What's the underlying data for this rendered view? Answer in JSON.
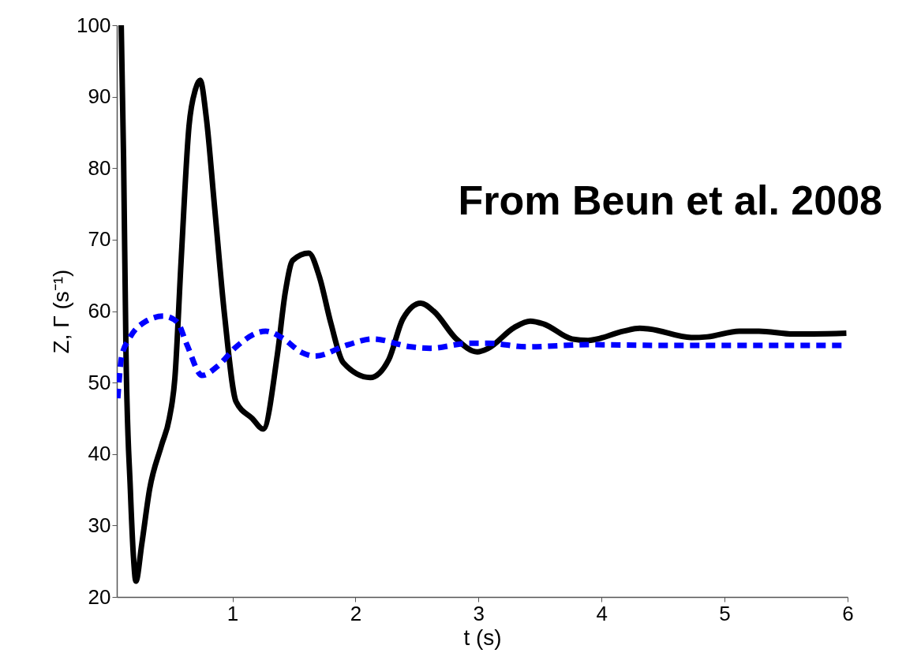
{
  "chart_data": {
    "type": "line",
    "xlabel": "t (s)",
    "ylabel": "Z, Γ (s⁻¹)",
    "xlim": [
      0.06,
      6
    ],
    "ylim": [
      20,
      100
    ],
    "xticks": [
      1,
      2,
      3,
      4,
      5,
      6
    ],
    "yticks": [
      20,
      30,
      40,
      50,
      60,
      70,
      80,
      90,
      100
    ],
    "grid": false,
    "marker": "none",
    "annotations": [
      "From Beun et al. 2008"
    ],
    "series": [
      {
        "color": "#000000",
        "line_style": "solid",
        "x": [
          0.096,
          0.115,
          0.135,
          0.17,
          0.195,
          0.215,
          0.263,
          0.327,
          0.423,
          0.487,
          0.532,
          0.583,
          0.647,
          0.699,
          0.737,
          0.788,
          0.853,
          0.936,
          1.03,
          1.16,
          1.25,
          1.365,
          1.43,
          1.49,
          1.62,
          1.705,
          1.8,
          1.9,
          2.12,
          2.27,
          2.385,
          2.53,
          2.635,
          2.82,
          2.99,
          3.08,
          3.29,
          3.42,
          3.53,
          3.76,
          3.89,
          4.18,
          4.31,
          4.39,
          4.73,
          4.86,
          5.12,
          5.28,
          5.56,
          5.72,
          5.99
        ],
        "values": [
          100,
          81.5,
          53.9,
          35.1,
          25.7,
          22.2,
          27.4,
          35.1,
          41.2,
          45,
          50.6,
          67.1,
          85.9,
          91,
          92.3,
          87,
          74.9,
          59.4,
          47.3,
          45,
          43.5,
          53.9,
          62.7,
          67.1,
          68.1,
          64.9,
          58.3,
          52.8,
          50.7,
          53.2,
          58.9,
          61.1,
          60,
          56.1,
          54.3,
          54.8,
          57.7,
          58.6,
          58.2,
          56.1,
          55.9,
          57.2,
          57.6,
          57.5,
          56.3,
          56.4,
          57.2,
          57.2,
          56.8,
          56.8,
          56.9
        ]
      },
      {
        "color": "#0000ff",
        "line_style": "dashed",
        "x": [
          0.068,
          0.1,
          0.16,
          0.29,
          0.44,
          0.55,
          0.63,
          0.753,
          0.88,
          1.03,
          1.27,
          1.4,
          1.565,
          1.67,
          1.94,
          2.14,
          2.45,
          2.61,
          2.92,
          3.08,
          3.39,
          3.89,
          4.54,
          5.99
        ],
        "values": [
          47.8,
          53.7,
          56.1,
          58.5,
          59.3,
          58.5,
          55.3,
          51,
          52.3,
          55,
          57.2,
          56.3,
          54.2,
          53.7,
          55.3,
          56.1,
          55,
          54.8,
          55.5,
          55.5,
          55,
          55.3,
          55.2,
          55.2
        ]
      }
    ]
  }
}
